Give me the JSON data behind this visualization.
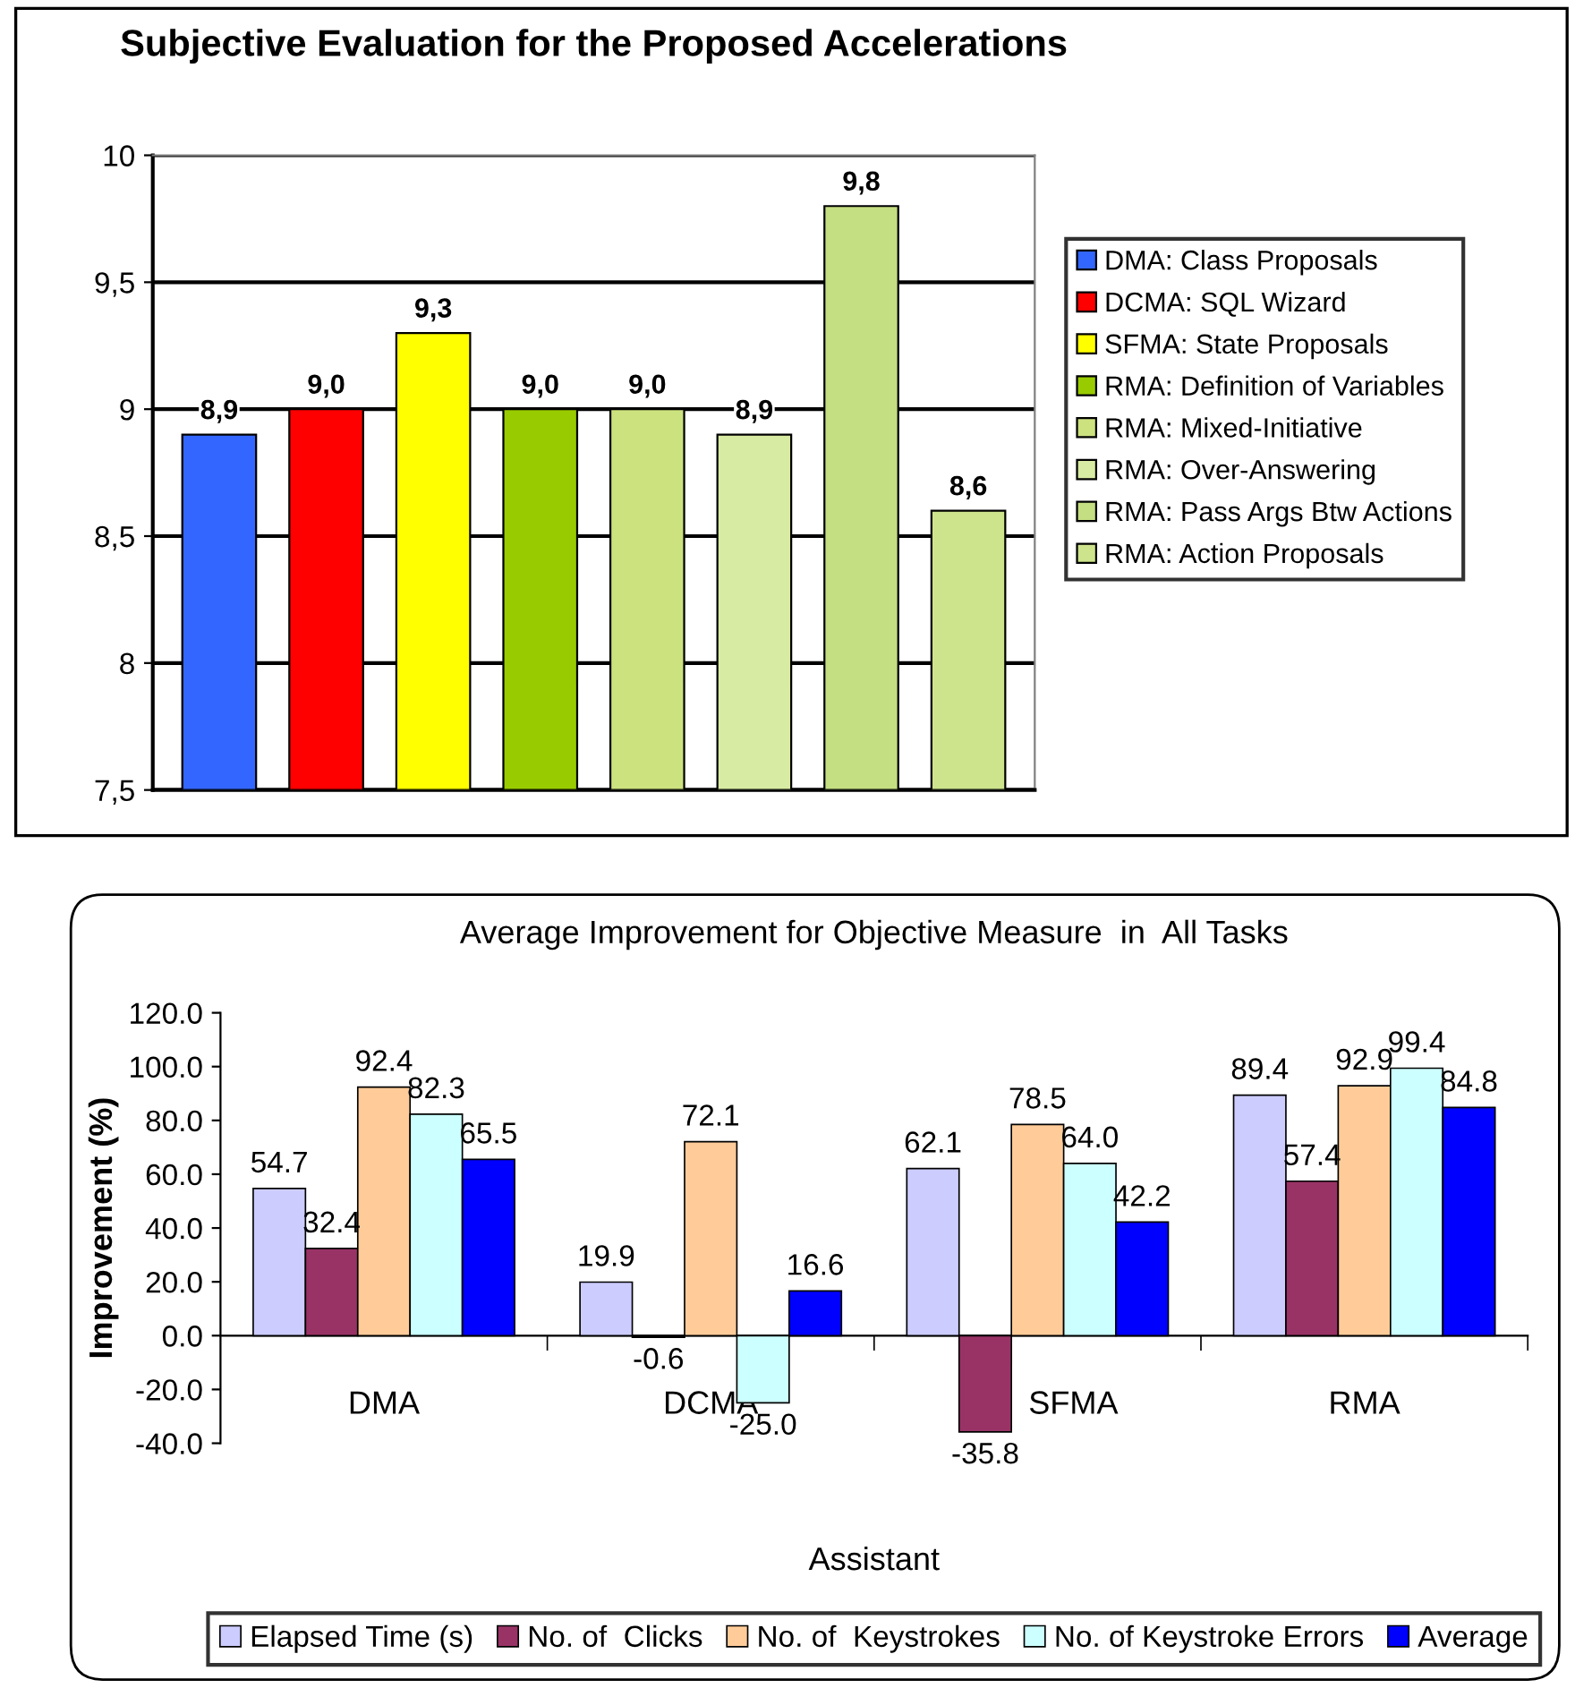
{
  "chart_data": [
    {
      "type": "bar",
      "title": "Subjective Evaluation for the Proposed Accelerations",
      "categories": [
        null
      ],
      "ylim": [
        7.5,
        10
      ],
      "yticks": [
        {
          "value": 7.5,
          "label": "7,5"
        },
        {
          "value": 8,
          "label": "8"
        },
        {
          "value": 8.5,
          "label": "8,5"
        },
        {
          "value": 9,
          "label": "9"
        },
        {
          "value": 9.5,
          "label": "9,5"
        },
        {
          "value": 10,
          "label": "10"
        }
      ],
      "grid": "y",
      "legend": "right",
      "series": [
        {
          "name": "DMA: Class Proposals",
          "color": "#3366ff",
          "values": [
            8.9
          ],
          "value_labels": [
            "8,9"
          ]
        },
        {
          "name": "DCMA: SQL Wizard",
          "color": "#ff0000",
          "values": [
            9.0
          ],
          "value_labels": [
            "9,0"
          ]
        },
        {
          "name": "SFMA: State Proposals",
          "color": "#ffff00",
          "values": [
            9.3
          ],
          "value_labels": [
            "9,3"
          ]
        },
        {
          "name": "RMA: Definition of Variables",
          "color": "#99cc00",
          "values": [
            9.0
          ],
          "value_labels": [
            "9,0"
          ]
        },
        {
          "name": "RMA: Mixed-Initiative",
          "color": "#cce27f",
          "values": [
            9.0
          ],
          "value_labels": [
            "9,0"
          ]
        },
        {
          "name": "RMA: Over-Answering",
          "color": "#d8eba2",
          "values": [
            8.9
          ],
          "value_labels": [
            "8,9"
          ]
        },
        {
          "name": "RMA: Pass Args Btw Actions",
          "color": "#c4de82",
          "values": [
            9.8
          ],
          "value_labels": [
            "9,8"
          ]
        },
        {
          "name": "RMA: Action Proposals",
          "color": "#cde48c",
          "values": [
            8.6
          ],
          "value_labels": [
            "8,6"
          ]
        }
      ]
    },
    {
      "type": "bar",
      "title": "Average Improvement for Objective Measure  in  All Tasks",
      "xlabel": "Assistant",
      "ylabel": "Improvement (%)",
      "categories": [
        "DMA",
        "DCMA",
        "SFMA",
        "RMA"
      ],
      "ylim": [
        -40,
        120
      ],
      "yticks": [
        {
          "value": -40,
          "label": "-40.0"
        },
        {
          "value": -20,
          "label": "-20.0"
        },
        {
          "value": 0,
          "label": "0.0"
        },
        {
          "value": 20,
          "label": "20.0"
        },
        {
          "value": 40,
          "label": "40.0"
        },
        {
          "value": 60,
          "label": "60.0"
        },
        {
          "value": 80,
          "label": "80.0"
        },
        {
          "value": 100,
          "label": "100.0"
        },
        {
          "value": 120,
          "label": "120.0"
        }
      ],
      "legend": "bottom",
      "series": [
        {
          "name": "Elapsed Time (s)",
          "color": "#ccccff",
          "values": [
            54.7,
            19.9,
            62.1,
            89.4
          ],
          "value_labels": [
            "54.7",
            "19.9",
            "62.1",
            "89.4"
          ]
        },
        {
          "name": "No. of  Clicks",
          "color": "#993366",
          "values": [
            32.4,
            -0.6,
            -35.8,
            57.4
          ],
          "value_labels": [
            "32.4",
            "-0.6",
            "-35.8",
            "57.4"
          ]
        },
        {
          "name": "No. of  Keystrokes",
          "color": "#ffcc99",
          "values": [
            92.4,
            72.1,
            78.5,
            92.9
          ],
          "value_labels": [
            "92.4",
            "72.1",
            "78.5",
            "92.9"
          ]
        },
        {
          "name": "No. of Keystroke Errors",
          "color": "#ccffff",
          "values": [
            82.3,
            -25.0,
            64.0,
            99.4
          ],
          "value_labels": [
            "82.3",
            "-25.0",
            "64.0",
            "99.4"
          ]
        },
        {
          "name": "Average",
          "color": "#0000ff",
          "values": [
            65.5,
            16.6,
            42.2,
            84.8
          ],
          "value_labels": [
            "65.5",
            "16.6",
            "42.2",
            "84.8"
          ]
        }
      ]
    }
  ]
}
